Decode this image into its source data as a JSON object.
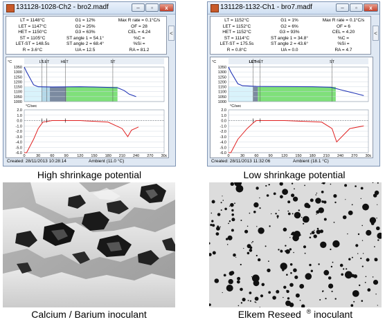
{
  "panels": [
    {
      "title": "131128-1028-Ch2 - bro2.madf",
      "stats": [
        [
          "LT = 1148°C",
          "G1 = 12%",
          "Max R rate = 0.1°C/s"
        ],
        [
          "LET = 1147°C",
          "G2 = 25%",
          "OF = 28"
        ],
        [
          "HET = 1150°C",
          "G3 = 63%",
          "CEL = 4.24"
        ],
        [
          "ST = 1105°C",
          "ST angle 1 = 54.1°",
          "%C ="
        ],
        [
          "LET-ST = 148.5s",
          "ST angle 2 = 68.4°",
          "%Si ="
        ],
        [
          "R = 3.6°C",
          "UA = 12.5",
          "RA = 81.2"
        ]
      ],
      "status_created": "Created: 28/11/2013 10:28:14",
      "status_ambient": "Ambient (11.0 °C)",
      "caption": "High shrinkage potential"
    },
    {
      "title": "131128-1132-Ch1 - bro7.madf",
      "stats": [
        [
          "LT = 1152°C",
          "G1 = 1%",
          "Max R rate = 0.1°C/s"
        ],
        [
          "LET = 1152°C",
          "G2 = 6%",
          "OF = 6"
        ],
        [
          "HET = 1152°C",
          "G3 = 93%",
          "CEL = 4.20"
        ],
        [
          "ST = 1114°C",
          "ST angle 1 = 34.8°",
          "%C ="
        ],
        [
          "LET-ST = 175.5s",
          "ST angle 2 = 43.6°",
          "%Si ="
        ],
        [
          "R = 0.8°C",
          "UA = 0.0",
          "RA = 4.7"
        ]
      ],
      "status_created": "Created: 28/11/2013 11:32:06",
      "status_ambient": "Ambient (18.1 °C)",
      "caption": "Low shrinkage potential"
    }
  ],
  "window_buttons": {
    "minimize": "–",
    "maximize": "▫",
    "close": "x"
  },
  "side_button": "<",
  "chart_common": {
    "temp_unit": "°C",
    "temp_ticks": [
      "1350",
      "1300",
      "1250",
      "1200",
      "1150",
      "1100",
      "1050",
      "1000"
    ],
    "rate_unit": "°C/sec",
    "rate_ticks": [
      "2.0",
      "1.0",
      "0.0",
      "-1.0",
      "-2.0",
      "-3.0",
      "-4.0",
      "-5.0",
      "-6.0"
    ],
    "x_ticks": [
      "0",
      "30",
      "60",
      "90",
      "120",
      "150",
      "180",
      "210",
      "240",
      "270",
      "30c"
    ]
  },
  "chart_data": [
    {
      "type": "line",
      "marker_labels": [
        "LT",
        "LET",
        "HET",
        "ST"
      ],
      "temperature": {
        "x": [
          0,
          5,
          20,
          30,
          60,
          120,
          150,
          200,
          215,
          225,
          240
        ],
        "y": [
          1350,
          1300,
          1170,
          1150,
          1148,
          1150,
          1148,
          1140,
          1110,
          1075,
          1050
        ]
      },
      "cooling_rate": {
        "x": [
          0,
          5,
          20,
          30,
          40,
          60,
          120,
          180,
          210,
          222,
          230,
          245
        ],
        "y": [
          -6.0,
          -6.0,
          -3.5,
          -1.5,
          -0.3,
          0.0,
          0.0,
          -0.3,
          -1.5,
          -3.0,
          -1.8,
          -1.2
        ]
      },
      "zones": [
        "cyan",
        "lightblue",
        "gray",
        "green"
      ]
    },
    {
      "type": "line",
      "marker_labels": [
        "LET",
        "HET",
        "ST"
      ],
      "temperature": {
        "x": [
          0,
          5,
          20,
          30,
          60,
          120,
          180,
          220,
          240,
          270,
          290
        ],
        "y": [
          1350,
          1300,
          1180,
          1160,
          1153,
          1152,
          1150,
          1145,
          1120,
          1085,
          1060
        ]
      },
      "cooling_rate": {
        "x": [
          0,
          5,
          20,
          40,
          55,
          60,
          120,
          200,
          222,
          232,
          260,
          290
        ],
        "y": [
          -6.0,
          -6.0,
          -3.5,
          -1.5,
          -0.3,
          0.0,
          0.0,
          -0.3,
          -1.5,
          -4.0,
          -1.5,
          -1.0
        ]
      },
      "zones": [
        "cyan",
        "gray",
        "green"
      ]
    }
  ],
  "photos": [
    {
      "caption": "Calcium / Barium inoculant"
    },
    {
      "caption_main": "Elkem Reseed",
      "caption_mark": "®",
      "caption_tail": " inoculant"
    }
  ]
}
